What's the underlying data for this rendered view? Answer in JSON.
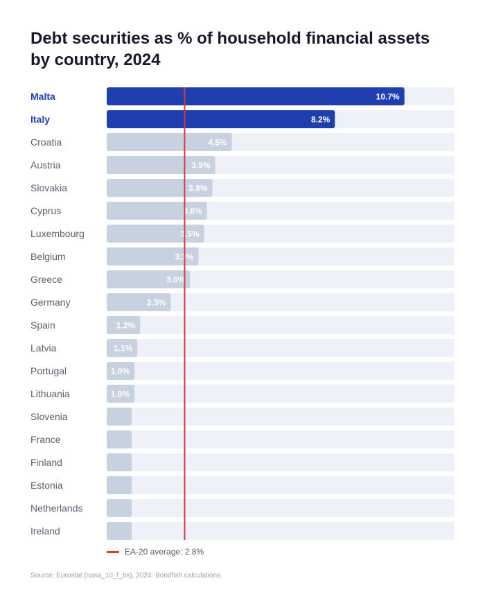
{
  "chart_data": {
    "type": "bar",
    "orientation": "horizontal",
    "title": "Debt securities as % of household financial assets by country, 2024",
    "xlabel": "",
    "ylabel": "",
    "xlim": [
      0,
      12.5
    ],
    "grid": false,
    "legend": "bottom-left",
    "categories": [
      "Malta",
      "Italy",
      "Croatia",
      "Austria",
      "Slovakia",
      "Cyprus",
      "Luxembourg",
      "Belgium",
      "Greece",
      "Germany",
      "Spain",
      "Latvia",
      "Portugal",
      "Lithuania",
      "Slovenia",
      "France",
      "Finland",
      "Estonia",
      "Netherlands",
      "Ireland"
    ],
    "values": [
      10.7,
      8.2,
      4.5,
      3.9,
      3.8,
      3.6,
      3.5,
      3.3,
      3.0,
      2.3,
      1.2,
      1.1,
      1.0,
      1.0,
      0.9,
      0.9,
      0.9,
      0.9,
      0.9,
      0.9
    ],
    "data_labels": [
      "10.7%",
      "8.2%",
      "4.5%",
      "3.9%",
      "3.8%",
      "3.6%",
      "3.5%",
      "3.3%",
      "3.0%",
      "2.3%",
      "1.2%",
      "1.1%",
      "1.0%",
      "1.0%",
      "",
      "",
      "",
      "",
      "",
      ""
    ],
    "highlighted": [
      "Malta",
      "Italy"
    ],
    "reference_line": {
      "label": "EA-20 average: 2.8%",
      "value": 2.8
    },
    "colors": {
      "highlight_bar": "#1f3fae",
      "bar": "#c8d1df",
      "track": "#eef1f7",
      "reference": "#d93a3a",
      "highlight_label": "#1f3fae",
      "label": "#5a6070",
      "data_label": "#ffffff"
    }
  },
  "source": "Source: Eurostat (nasa_10_f_bs), 2024. Bondfish calculations."
}
